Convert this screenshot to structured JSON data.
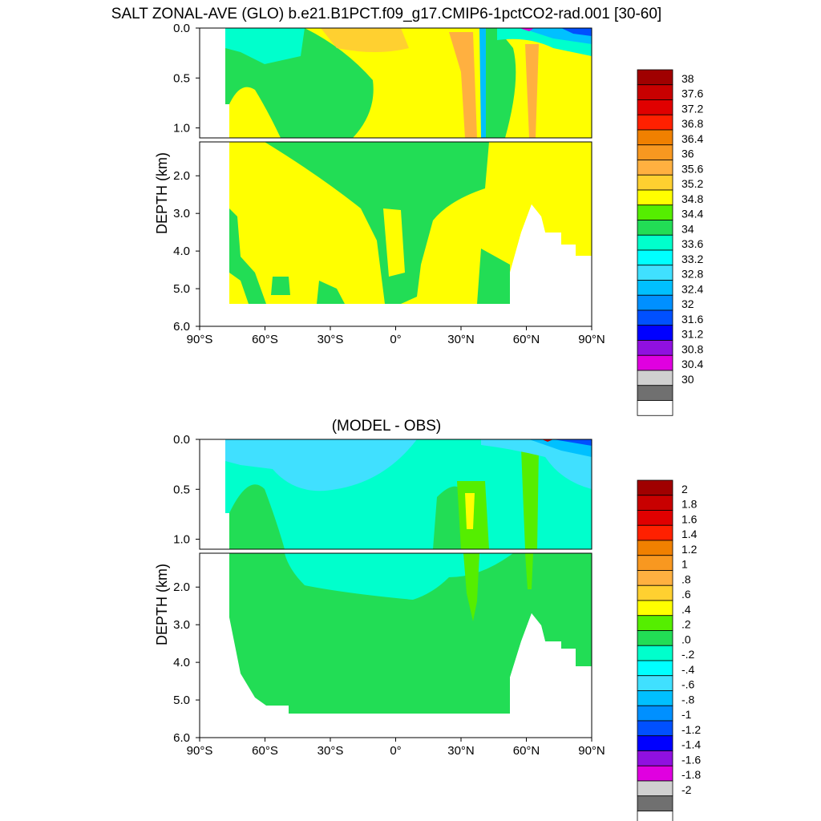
{
  "title": "SALT ZONAL-AVE (GLO) b.e21.B1PCT.f09_g17.CMIP6-1pctCO2-rad.001 [30-60]",
  "chart_data": [
    {
      "type": "heatmap",
      "title": "",
      "ylabel": "DEPTH (km)",
      "xlim": [
        -90,
        90
      ],
      "ylim": [
        0,
        6
      ],
      "x_ticks": [
        "90°S",
        "60°S",
        "30°S",
        "0°",
        "30°N",
        "60°N",
        "90°N"
      ],
      "y_ticks_upper": [
        "0.0",
        "0.5",
        "1.0"
      ],
      "y_ticks_lower": [
        "2.0",
        "3.0",
        "4.0",
        "5.0",
        "6.0"
      ],
      "colorbar_labels": [
        "38",
        "37.6",
        "37.2",
        "36.8",
        "36.4",
        "36",
        "35.6",
        "35.2",
        "34.8",
        "34.4",
        "34",
        "33.6",
        "33.2",
        "32.8",
        "32.4",
        "32",
        "31.6",
        "31.2",
        "30.8",
        "30.4",
        "30"
      ],
      "colorbar_colors": [
        "#a00000",
        "#c80000",
        "#e00000",
        "#ff2000",
        "#f08000",
        "#f89820",
        "#ffb040",
        "#ffd030",
        "#ffff00",
        "#55ee00",
        "#22dd55",
        "#00ffcc",
        "#00ffff",
        "#40e0ff",
        "#00c0ff",
        "#0090ff",
        "#0050ff",
        "#0000ff",
        "#9010e0",
        "#e000e0",
        "#d0d0d0",
        "#707070",
        "#ffffff"
      ],
      "dominant_values": {
        "upper_ocean_south": "34.4-34.8",
        "deep_ocean": "34.8-35.2",
        "subtropical_north_atlantic_max": "35.6-36.4"
      }
    },
    {
      "type": "heatmap",
      "title": "(MODEL - OBS)",
      "ylabel": "DEPTH (km)",
      "xlim": [
        -90,
        90
      ],
      "ylim": [
        0,
        6
      ],
      "x_ticks": [
        "90°S",
        "60°S",
        "30°S",
        "0°",
        "30°N",
        "60°N",
        "90°N"
      ],
      "y_ticks_upper": [
        "0.0",
        "0.5",
        "1.0"
      ],
      "y_ticks_lower": [
        "2.0",
        "3.0",
        "4.0",
        "5.0",
        "6.0"
      ],
      "colorbar_labels": [
        "2",
        "1.8",
        "1.6",
        "1.4",
        "1.2",
        "1",
        ".8",
        ".6",
        ".4",
        ".2",
        ".0",
        "-.2",
        "-.4",
        "-.6",
        "-.8",
        "-1",
        "-1.2",
        "-1.4",
        "-1.6",
        "-1.8",
        "-2"
      ],
      "colorbar_colors": [
        "#a00000",
        "#c80000",
        "#e00000",
        "#ff2000",
        "#f08000",
        "#f89820",
        "#ffb040",
        "#ffd030",
        "#ffff00",
        "#55ee00",
        "#22dd55",
        "#00ffcc",
        "#00ffff",
        "#40e0ff",
        "#00c0ff",
        "#0090ff",
        "#0050ff",
        "#0000ff",
        "#9010e0",
        "#e000e0",
        "#d0d0d0",
        "#707070",
        "#ffffff"
      ],
      "dominant_values": {
        "deep_ocean": "0.0-0.2",
        "upper_ocean": "-0.4-0.0",
        "mediterranean_outflow_max": "0.4-0.6"
      }
    }
  ]
}
